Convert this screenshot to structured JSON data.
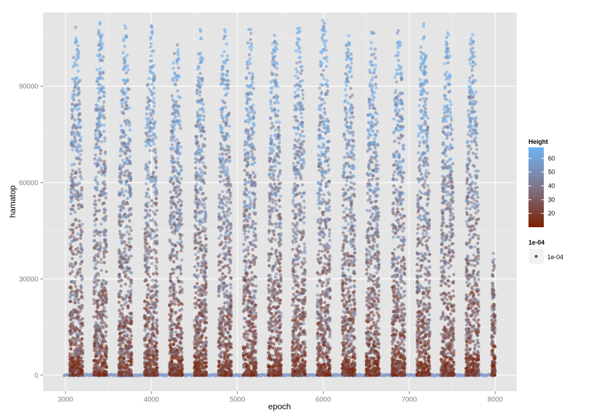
{
  "chart_data": {
    "type": "scatter",
    "xlabel": "epoch",
    "ylabel": "hamatop",
    "xlim": [
      2740,
      8250
    ],
    "ylim": [
      -5000,
      113000
    ],
    "x_ticks": [
      3000,
      4000,
      5000,
      6000,
      7000,
      8000
    ],
    "x_tick_labels": [
      "3000",
      "4000",
      "5000",
      "6000",
      "7000",
      "8000"
    ],
    "y_ticks": [
      0,
      30000,
      60000,
      90000
    ],
    "y_tick_labels": [
      "0",
      "30000",
      "60000",
      "90000"
    ],
    "grid": true,
    "cycles": [
      {
        "start": 3050,
        "end": 3200,
        "peak": 109000
      },
      {
        "start": 3330,
        "end": 3480,
        "peak": 111000
      },
      {
        "start": 3620,
        "end": 3770,
        "peak": 110000
      },
      {
        "start": 3920,
        "end": 4070,
        "peak": 110000
      },
      {
        "start": 4210,
        "end": 4360,
        "peak": 108000
      },
      {
        "start": 4500,
        "end": 4640,
        "peak": 108000
      },
      {
        "start": 4780,
        "end": 4930,
        "peak": 108000
      },
      {
        "start": 5070,
        "end": 5220,
        "peak": 109000
      },
      {
        "start": 5360,
        "end": 5510,
        "peak": 109000
      },
      {
        "start": 5640,
        "end": 5790,
        "peak": 111000
      },
      {
        "start": 5930,
        "end": 6080,
        "peak": 112000
      },
      {
        "start": 6220,
        "end": 6370,
        "peak": 108000
      },
      {
        "start": 6500,
        "end": 6650,
        "peak": 109000
      },
      {
        "start": 6800,
        "end": 6950,
        "peak": 109000
      },
      {
        "start": 7090,
        "end": 7240,
        "peak": 110000
      },
      {
        "start": 7370,
        "end": 7520,
        "peak": 108000
      },
      {
        "start": 7660,
        "end": 7810,
        "peak": 108000
      },
      {
        "start": 7960,
        "end": 8000,
        "peak": 40000
      }
    ],
    "baseline": {
      "x_start": 2980,
      "x_end": 8000,
      "y": 0
    },
    "legend": {
      "position": "right",
      "color": {
        "title": "Height",
        "labels": [
          "60",
          "50",
          "40",
          "30",
          "20"
        ],
        "values": [
          60,
          50,
          40,
          30,
          20
        ],
        "range": [
          10,
          68
        ],
        "low_color": "#7a1f00",
        "high_color": "#6fb3f2"
      },
      "size": {
        "title": "1e-04",
        "label": "1e-04"
      }
    }
  },
  "colors": {
    "panel_background": "#e5e5e5",
    "grid_major": "#ffffff",
    "grid_minor": "#f2f2f2",
    "tick_text": "#7f7f7f"
  }
}
